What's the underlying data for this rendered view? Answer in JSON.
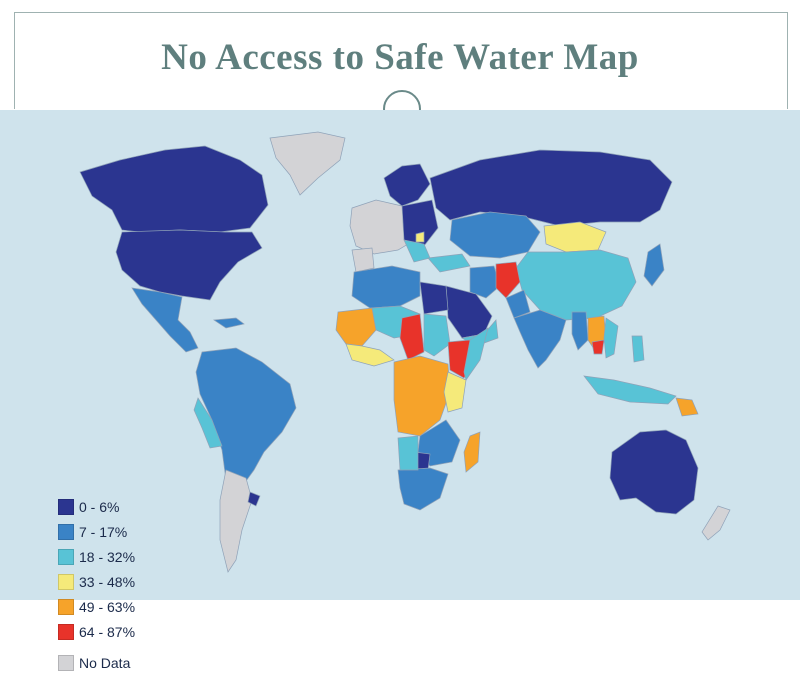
{
  "title": "No Access to Safe Water Map",
  "colors": {
    "ocean": "#cfe3ec",
    "band_0_6": "#2b3590",
    "band_7_17": "#3a83c6",
    "band_18_32": "#58c3d6",
    "band_33_48": "#f5ea7a",
    "band_49_63": "#f6a32a",
    "band_64_87": "#e8332a",
    "no_data": "#d3d3d6",
    "border": "#8fa2b8"
  },
  "legend": [
    {
      "label": "0 - 6%",
      "color": "#2b3590"
    },
    {
      "label": "7 - 17%",
      "color": "#3a83c6"
    },
    {
      "label": "18 - 32%",
      "color": "#58c3d6"
    },
    {
      "label": "33 - 48%",
      "color": "#f5ea7a"
    },
    {
      "label": "49 - 63%",
      "color": "#f6a32a"
    },
    {
      "label": "64 - 87%",
      "color": "#e8332a"
    },
    {
      "label": "No Data",
      "color": "#d3d3d6"
    }
  ]
}
